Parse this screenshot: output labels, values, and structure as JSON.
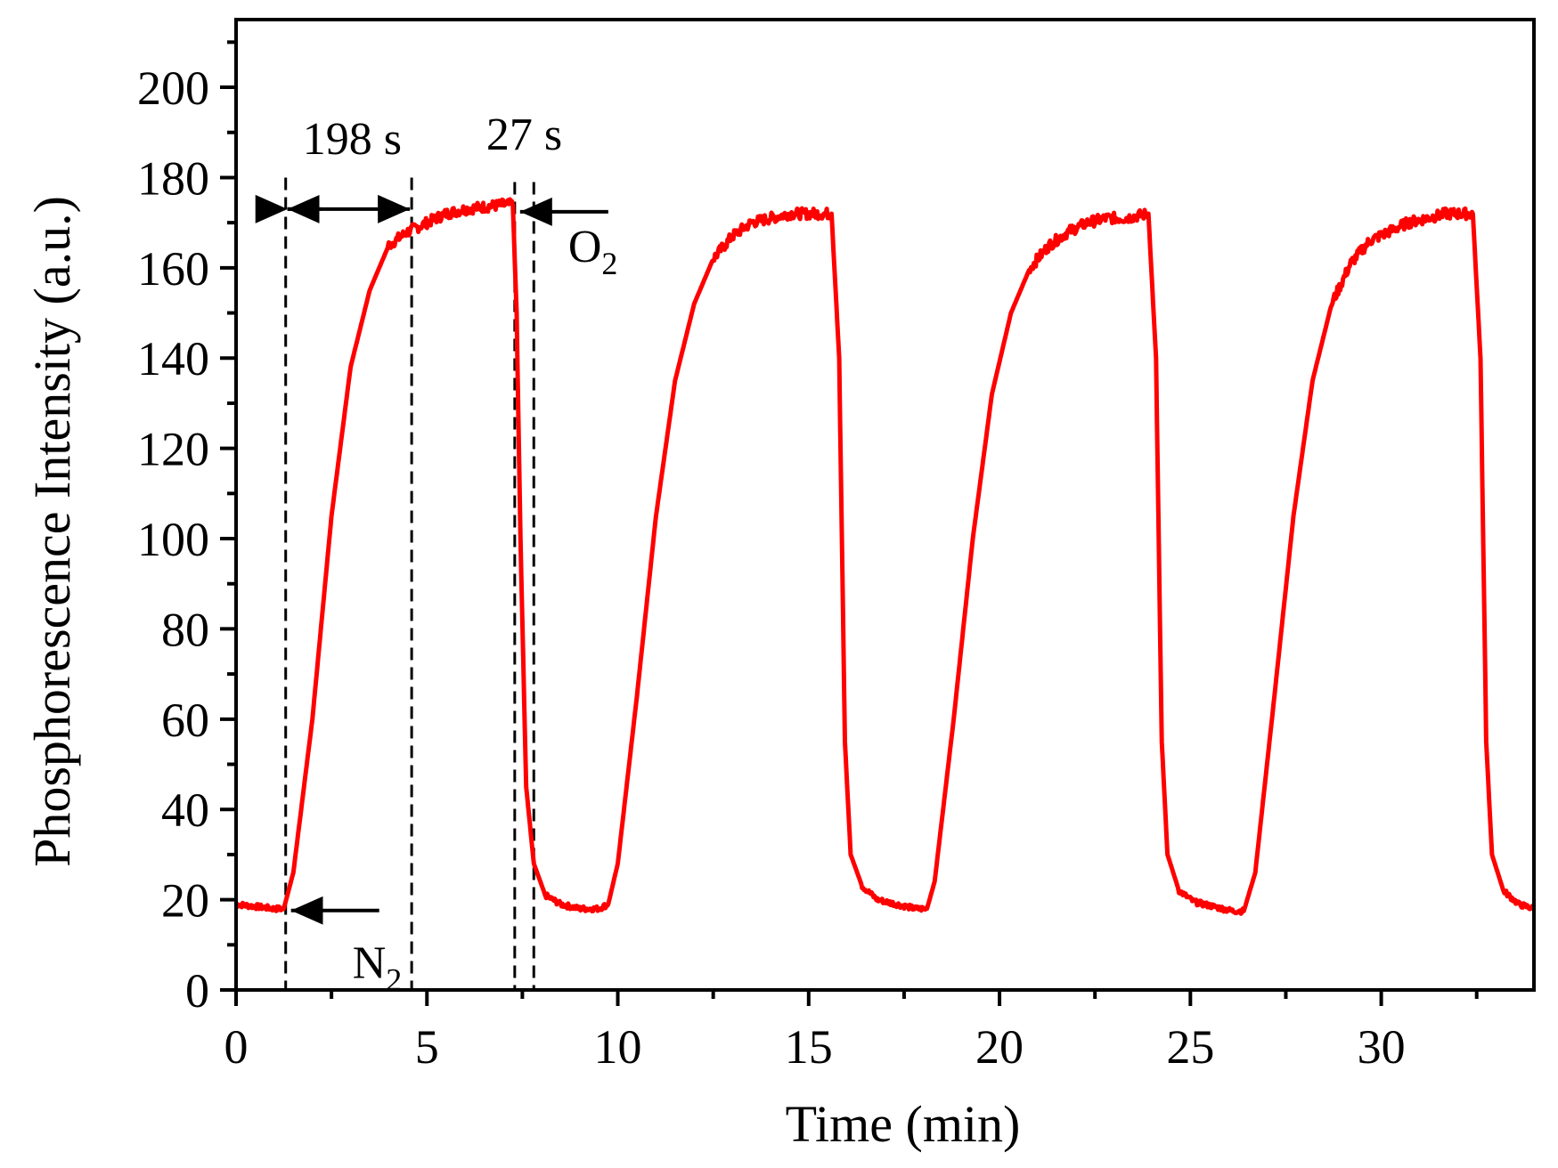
{
  "chart_data": {
    "type": "line",
    "title": "",
    "xlabel": "Time (min)",
    "ylabel": "Phosphorescence Intensity (a.u.)",
    "xlim": [
      0,
      34
    ],
    "ylim": [
      0,
      215
    ],
    "xticks": [
      0,
      5,
      10,
      15,
      20,
      25,
      30
    ],
    "xtick_labels": [
      "0",
      "5",
      "10",
      "15",
      "20",
      "25",
      "30"
    ],
    "yticks": [
      0,
      20,
      40,
      60,
      80,
      100,
      120,
      140,
      160,
      180,
      200
    ],
    "ytick_labels": [
      "0",
      "20",
      "40",
      "60",
      "80",
      "100",
      "120",
      "140",
      "160",
      "180",
      "200"
    ],
    "grid": false,
    "line_color": "#ff0000",
    "series": [
      {
        "name": "Phosphorescence",
        "x": [
          0,
          0.5,
          1.0,
          1.25,
          1.5,
          2.0,
          2.5,
          3.0,
          3.5,
          4.0,
          4.5,
          5.0,
          5.5,
          6.0,
          6.5,
          7.0,
          7.25,
          7.35,
          7.45,
          7.6,
          7.8,
          8.1,
          8.5,
          9.0,
          9.5,
          9.75,
          10.0,
          10.5,
          11.0,
          11.5,
          12.0,
          12.5,
          13.0,
          13.5,
          14.0,
          14.5,
          15.0,
          15.6,
          15.8,
          15.95,
          16.1,
          16.4,
          16.8,
          17.3,
          17.8,
          18.1,
          18.3,
          18.8,
          19.3,
          19.8,
          20.3,
          20.8,
          21.3,
          21.8,
          22.3,
          22.8,
          23.3,
          23.9,
          24.1,
          24.25,
          24.4,
          24.7,
          25.1,
          25.6,
          26.1,
          26.4,
          26.7,
          27.2,
          27.7,
          28.2,
          28.7,
          29.2,
          29.7,
          30.2,
          30.7,
          31.2,
          31.7,
          32.4,
          32.6,
          32.75,
          32.9,
          33.2,
          33.6,
          34.0
        ],
        "y": [
          19,
          18.5,
          18,
          18,
          26,
          60,
          105,
          138,
          155,
          165,
          168,
          170,
          172,
          173,
          173.5,
          174,
          174,
          150,
          100,
          45,
          28,
          21,
          19,
          18,
          18,
          19,
          28,
          65,
          105,
          135,
          152,
          162,
          167,
          170,
          171,
          172,
          172,
          172,
          140,
          55,
          30,
          23,
          20,
          19,
          18,
          18,
          24,
          60,
          100,
          132,
          150,
          160,
          165,
          168,
          170,
          171,
          171,
          172,
          140,
          55,
          30,
          22,
          19.5,
          18.5,
          17.5,
          17.5,
          26,
          65,
          105,
          135,
          152,
          161,
          166,
          168,
          170,
          171,
          172,
          172,
          140,
          55,
          30,
          22,
          19,
          18
        ]
      }
    ],
    "annotations": [
      {
        "text": "198 s",
        "type": "interval",
        "from": 1.3,
        "to": 4.6,
        "y": 173
      },
      {
        "text": "27 s",
        "type": "interval",
        "from": 7.3,
        "to": 7.8,
        "y": 174
      },
      {
        "text": "N",
        "sub": "2",
        "type": "arrow-label",
        "x": 1.3,
        "y": 18
      },
      {
        "text": "O",
        "sub": "2",
        "type": "arrow-label",
        "x": 7.3,
        "y": 174
      }
    ],
    "dashed_lines_x": [
      1.3,
      4.6,
      7.3,
      7.8
    ]
  }
}
